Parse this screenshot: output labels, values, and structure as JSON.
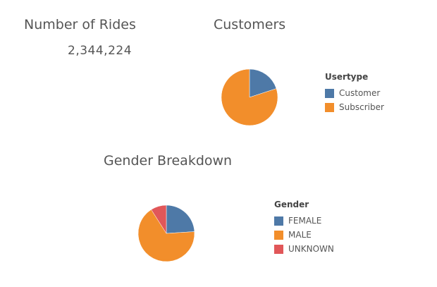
{
  "kpi": {
    "title": "Number of Rides",
    "value": "2,344,224"
  },
  "chart_data": [
    {
      "type": "pie",
      "title": "Customers",
      "legend_title": "Usertype",
      "legend_position": "right",
      "categories": [
        "Customer",
        "Subscriber"
      ],
      "values": [
        20,
        80
      ],
      "colors": [
        "#4e79a7",
        "#f28e2b"
      ]
    },
    {
      "type": "pie",
      "title": "Gender Breakdown",
      "legend_title": "Gender",
      "legend_position": "right",
      "categories": [
        "FEMALE",
        "MALE",
        "UNKNOWN"
      ],
      "values": [
        24,
        67,
        9
      ],
      "colors": [
        "#4e79a7",
        "#f28e2b",
        "#e15759"
      ]
    }
  ]
}
